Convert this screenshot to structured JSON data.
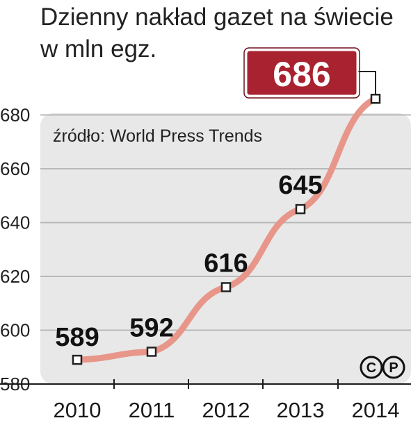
{
  "title_line1": "Dzienny nakład gazet na świecie",
  "title_line2": "w mln egz.",
  "source": "źródło: World Press Trends",
  "copyright": {
    "c": "C",
    "p": "P"
  },
  "colors": {
    "line": "#e8968a",
    "panel": "#e8e8e8",
    "highlight": "#a8222f",
    "grid": "#b9b9b9"
  },
  "chart_data": {
    "type": "line",
    "title": "Dzienny nakład gazet na świecie w mln egz.",
    "categories": [
      "2010",
      "2011",
      "2012",
      "2013",
      "2014"
    ],
    "values": [
      589,
      592,
      616,
      645,
      686
    ],
    "data_labels": [
      "589",
      "592",
      "616",
      "645",
      "686"
    ],
    "y_ticks": [
      "580",
      "600",
      "620",
      "640",
      "660",
      "680"
    ],
    "ylim": [
      580,
      690
    ],
    "grid": true,
    "highlight_index": 4
  }
}
